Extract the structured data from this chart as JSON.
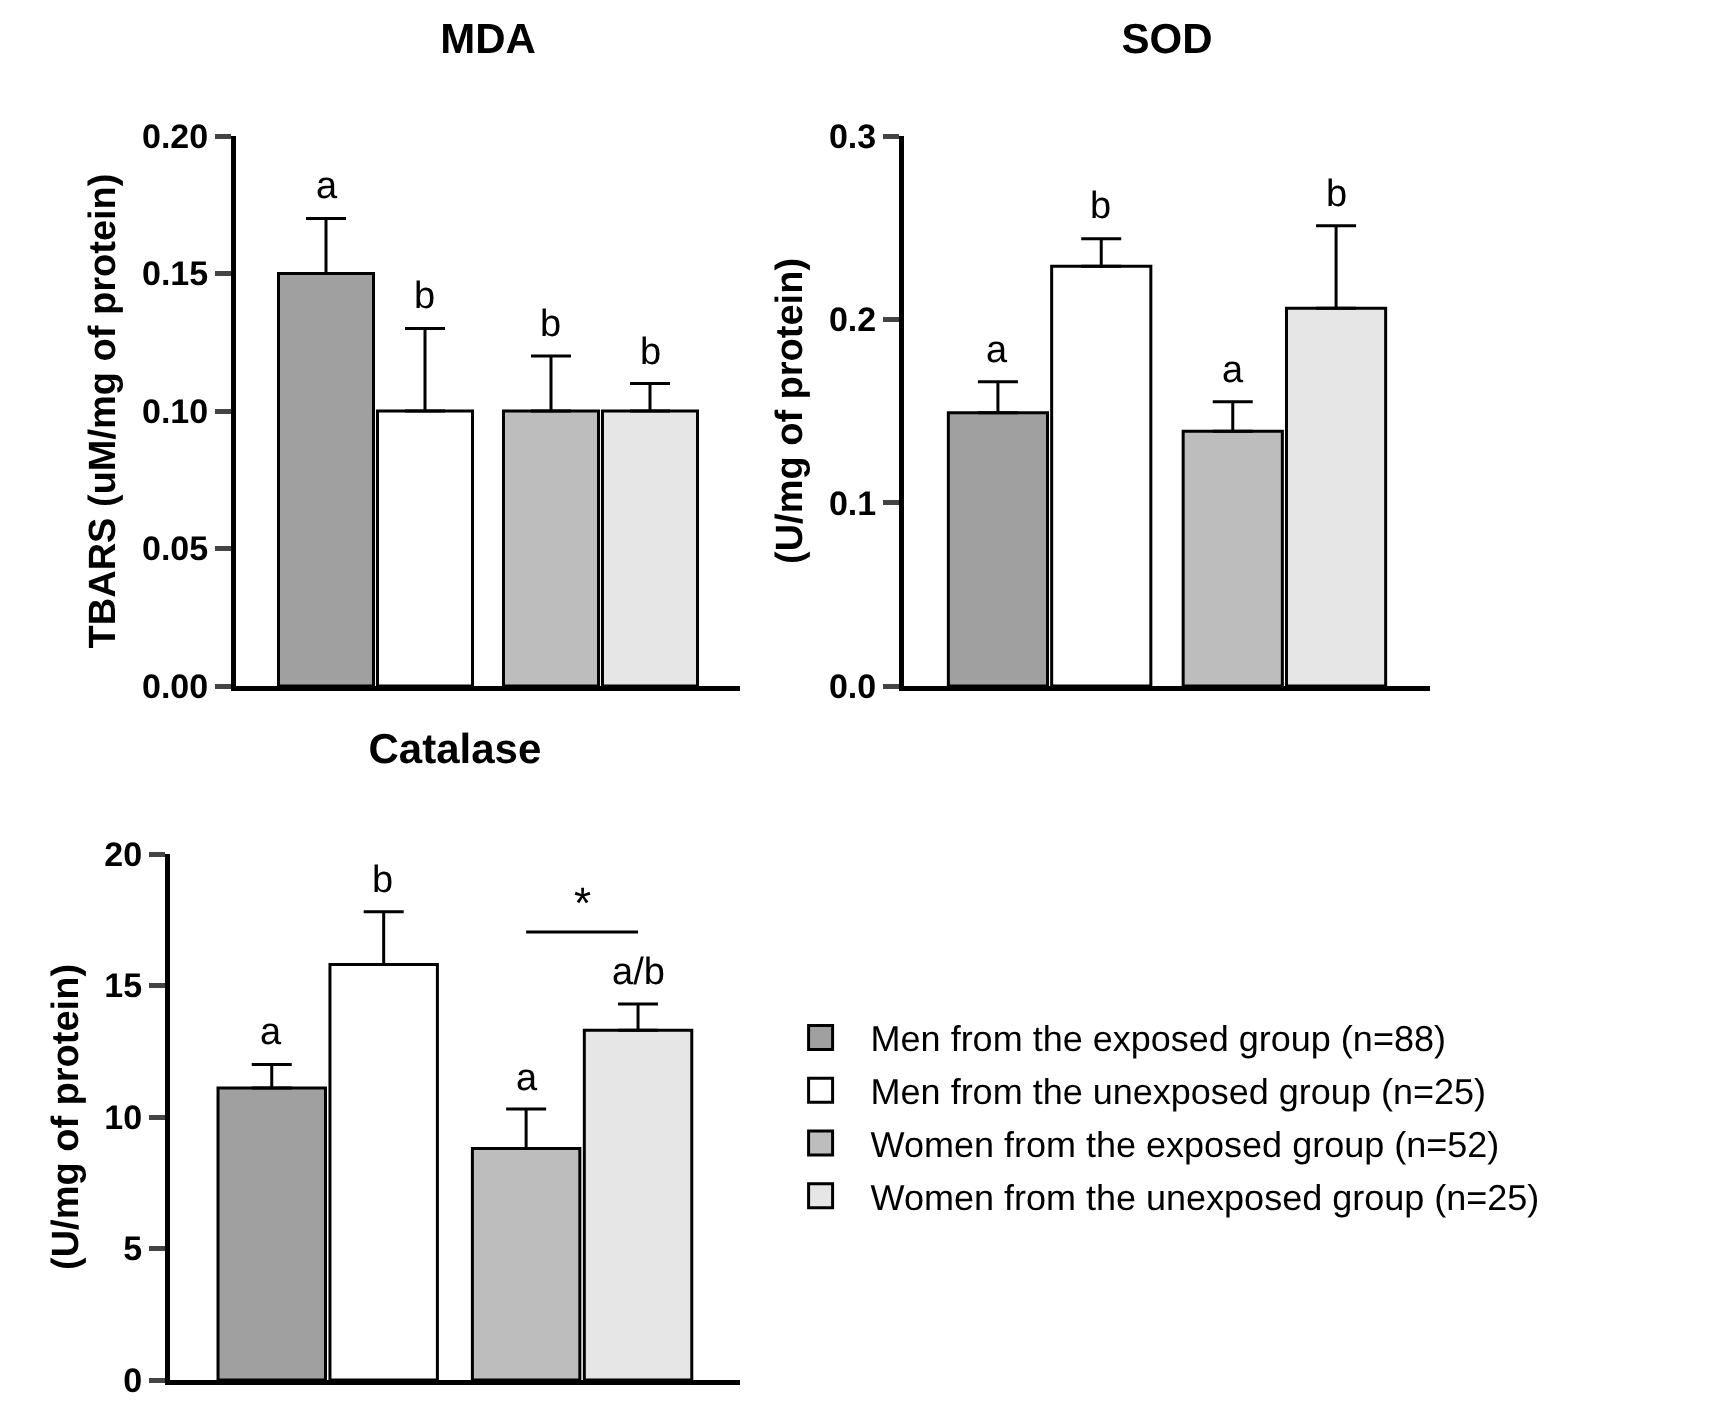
{
  "chart_data": [
    {
      "type": "bar",
      "title": "MDA",
      "ylabel": "TBARS (uM/mg of protein)",
      "categories": [
        null,
        null
      ],
      "ylim": [
        0,
        0.2
      ],
      "yticks": [
        {
          "value": 0,
          "label": "0.00"
        },
        {
          "value": 0.05,
          "label": "0.05"
        },
        {
          "value": 0.1,
          "label": "0.10"
        },
        {
          "value": 0.15,
          "label": "0.15"
        },
        {
          "value": 0.2,
          "label": "0.20"
        }
      ],
      "grid": false,
      "legend": false,
      "series": [
        {
          "color": "#a0a0a0",
          "values": [
            0.15,
            null
          ],
          "errors": [
            [
              0.15,
              0.17
            ],
            null
          ]
        },
        {
          "color": "#ffffff",
          "values": [
            0.1,
            null
          ],
          "errors": [
            [
              0.1,
              0.13
            ],
            null
          ]
        },
        {
          "color": "#bdbdbd",
          "values": [
            null,
            0.1
          ],
          "errors": [
            null,
            [
              0.1,
              0.12
            ]
          ]
        },
        {
          "color": "#e6e6e6",
          "values": [
            null,
            0.1
          ],
          "errors": [
            null,
            [
              0.1,
              0.11
            ]
          ]
        }
      ],
      "annotations": [
        {
          "text": "a",
          "y": 0.17
        },
        {
          "text": "b",
          "y": 0.13
        },
        {
          "text": "b",
          "y": 0.12
        },
        {
          "text": "b",
          "y": 0.11
        }
      ]
    },
    {
      "type": "bar",
      "title": "SOD",
      "ylabel": "(U/mg of protein)",
      "categories": [
        null,
        null
      ],
      "ylim": [
        0,
        0.3
      ],
      "yticks": [
        {
          "value": 0,
          "label": "0.0"
        },
        0.1,
        0.2,
        0.3
      ],
      "grid": false,
      "legend": false,
      "series": [
        {
          "color": "#a0a0a0",
          "values": [
            0.149,
            null
          ],
          "errors": [
            [
              0.149,
              0.166
            ],
            null
          ]
        },
        {
          "color": "#ffffff",
          "values": [
            0.229,
            null
          ],
          "errors": [
            [
              0.229,
              0.244
            ],
            null
          ]
        },
        {
          "color": "#bdbdbd",
          "values": [
            null,
            0.139
          ],
          "errors": [
            null,
            [
              0.139,
              0.155
            ]
          ]
        },
        {
          "color": "#e6e6e6",
          "values": [
            null,
            0.206
          ],
          "errors": [
            null,
            [
              0.206,
              0.251
            ]
          ]
        }
      ],
      "annotations": [
        {
          "text": "a",
          "y": 0.166
        },
        {
          "text": "b",
          "y": 0.244
        },
        {
          "text": "a",
          "y": 0.155
        },
        {
          "text": "b",
          "y": 0.251
        }
      ]
    },
    {
      "type": "bar",
      "title": "Catalase",
      "ylabel": "(U/mg of protein)",
      "categories": [
        null,
        null
      ],
      "ylim": [
        0,
        20
      ],
      "yticks": [
        0,
        5,
        10,
        15,
        20
      ],
      "grid": false,
      "legend": "right",
      "series": [
        {
          "name": "Men from the exposed group (n=88)",
          "color": "#a0a0a0",
          "values": [
            11.1,
            null
          ],
          "errors": [
            [
              11.1,
              12.0
            ],
            null
          ]
        },
        {
          "name": "Men from the unexposed group (n=25)",
          "color": "#ffffff",
          "values": [
            15.8,
            null
          ],
          "errors": [
            [
              15.8,
              17.8
            ],
            null
          ]
        },
        {
          "name": "Women from the exposed group (n=52)",
          "color": "#bdbdbd",
          "values": [
            null,
            8.8
          ],
          "errors": [
            null,
            [
              8.8,
              10.3
            ]
          ]
        },
        {
          "name": "Women from the unexposed group (n=25)",
          "color": "#e6e6e6",
          "values": [
            null,
            13.3
          ],
          "errors": [
            null,
            [
              13.3,
              14.3
            ]
          ]
        }
      ],
      "annotations": [
        {
          "text": "a",
          "y": 12.0
        },
        {
          "text": "b",
          "y": 17.8
        },
        {
          "text": "a",
          "y": 10.3
        },
        {
          "text": "a/b",
          "y": 14.3
        },
        "*"
      ]
    }
  ]
}
